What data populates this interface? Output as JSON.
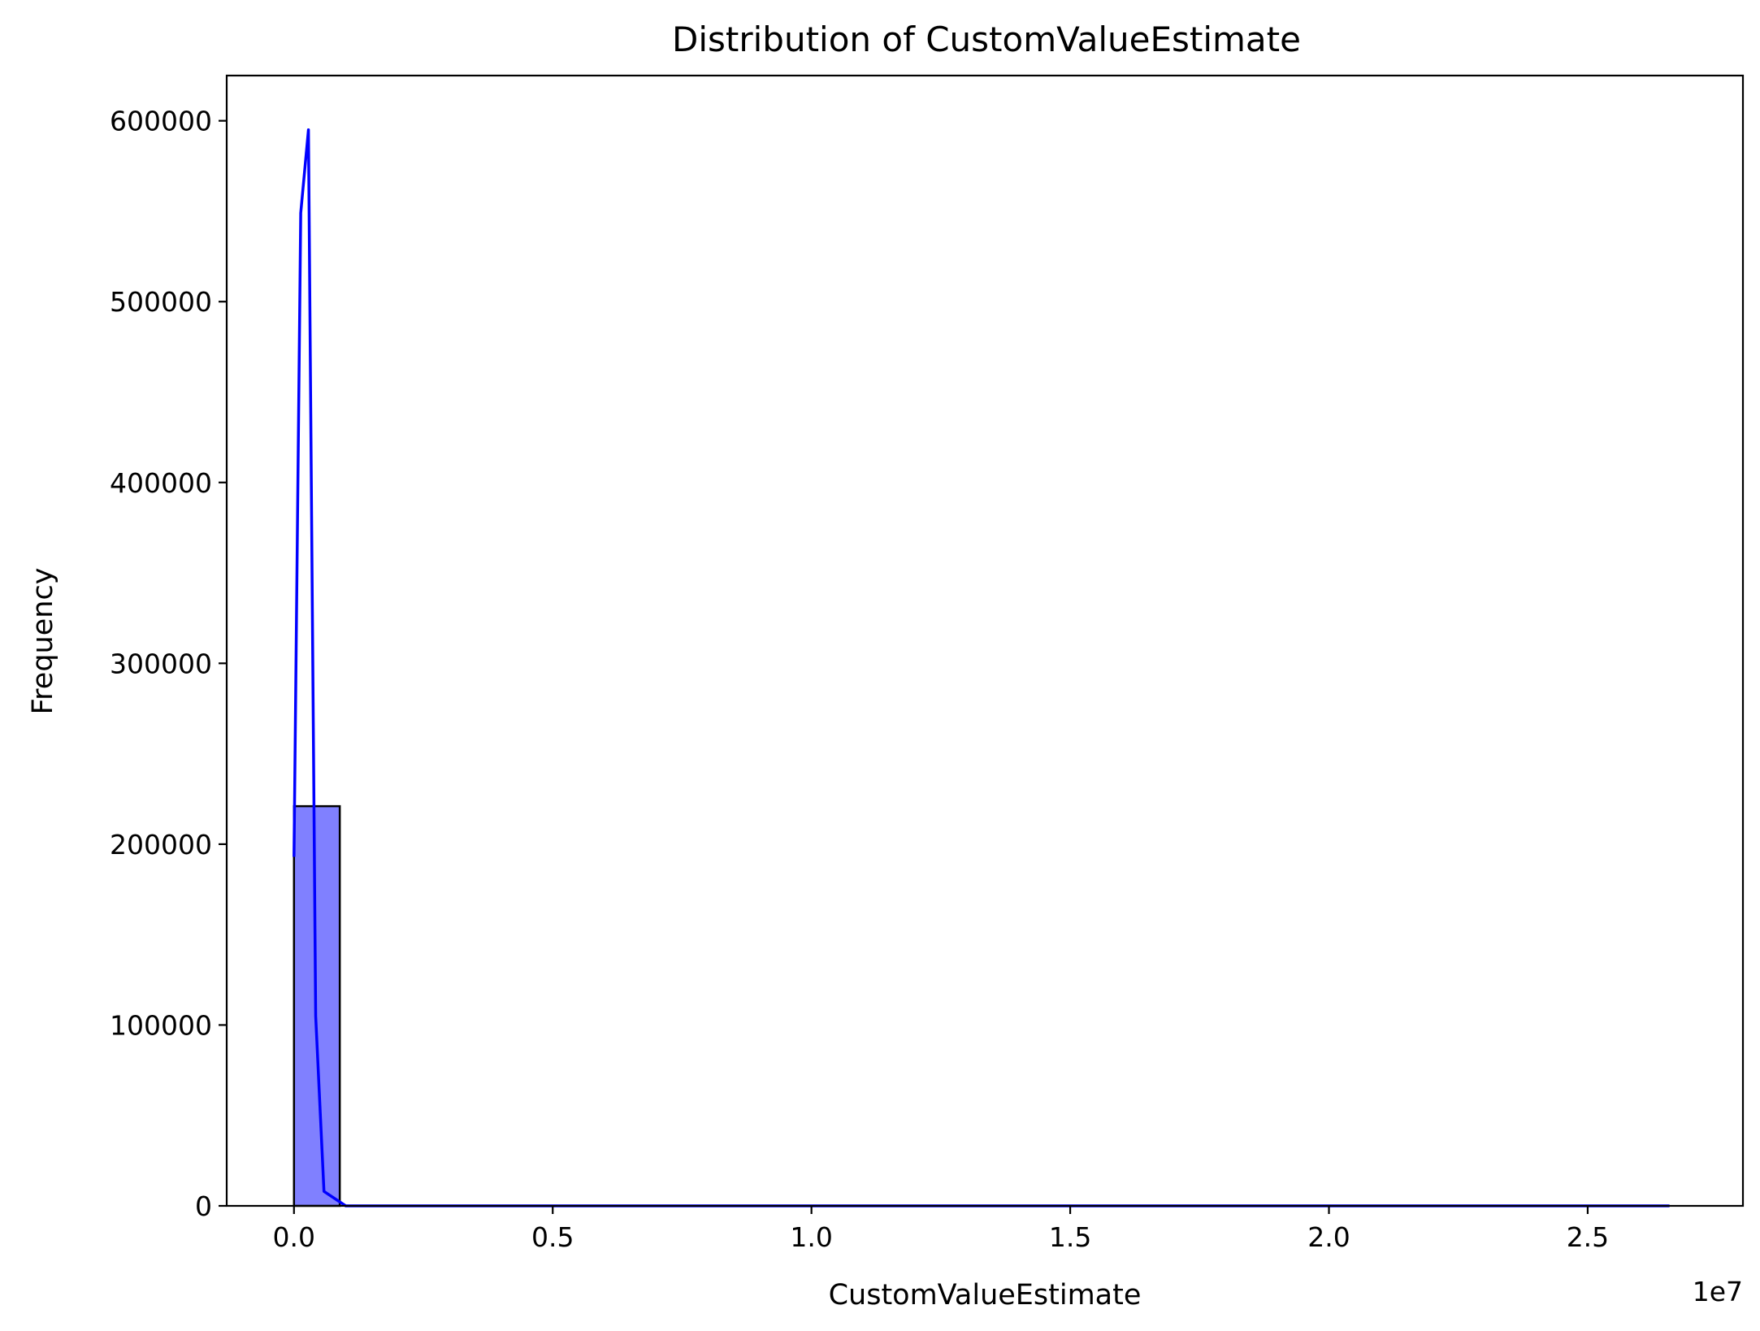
{
  "chart_data": {
    "type": "bar",
    "title": "Distribution of CustomValueEstimate",
    "xlabel": "CustomValueEstimate",
    "ylabel": "Frequency",
    "x_offset_label": "1e7",
    "x_scale": 10000000,
    "xlim": [
      -0.13,
      2.8
    ],
    "ylim": [
      0,
      625000
    ],
    "x_ticks": [
      0.0,
      0.5,
      1.0,
      1.5,
      2.0,
      2.5
    ],
    "x_tick_labels": [
      "0.0",
      "0.5",
      "1.0",
      "1.5",
      "2.0",
      "2.5"
    ],
    "y_ticks": [
      0,
      100000,
      200000,
      300000,
      400000,
      500000,
      600000
    ],
    "y_tick_labels": [
      "0",
      "100000",
      "200000",
      "300000",
      "400000",
      "500000",
      "600000"
    ],
    "grid": false,
    "bars": [
      {
        "x0": 0.0,
        "x1": 0.0885,
        "value": 221000
      }
    ],
    "bar_fill_color": "#8080ff",
    "bar_edge_color": "#000000",
    "kde": {
      "color": "#0000ff",
      "x": [
        0.0,
        0.013,
        0.028,
        0.042,
        0.058,
        0.1,
        0.3,
        0.6,
        1.0,
        1.5,
        1.9,
        2.2,
        2.658
      ],
      "y": [
        193000,
        549000,
        595000,
        105000,
        8000,
        0,
        0,
        0,
        0,
        0,
        0,
        0,
        0
      ]
    }
  }
}
